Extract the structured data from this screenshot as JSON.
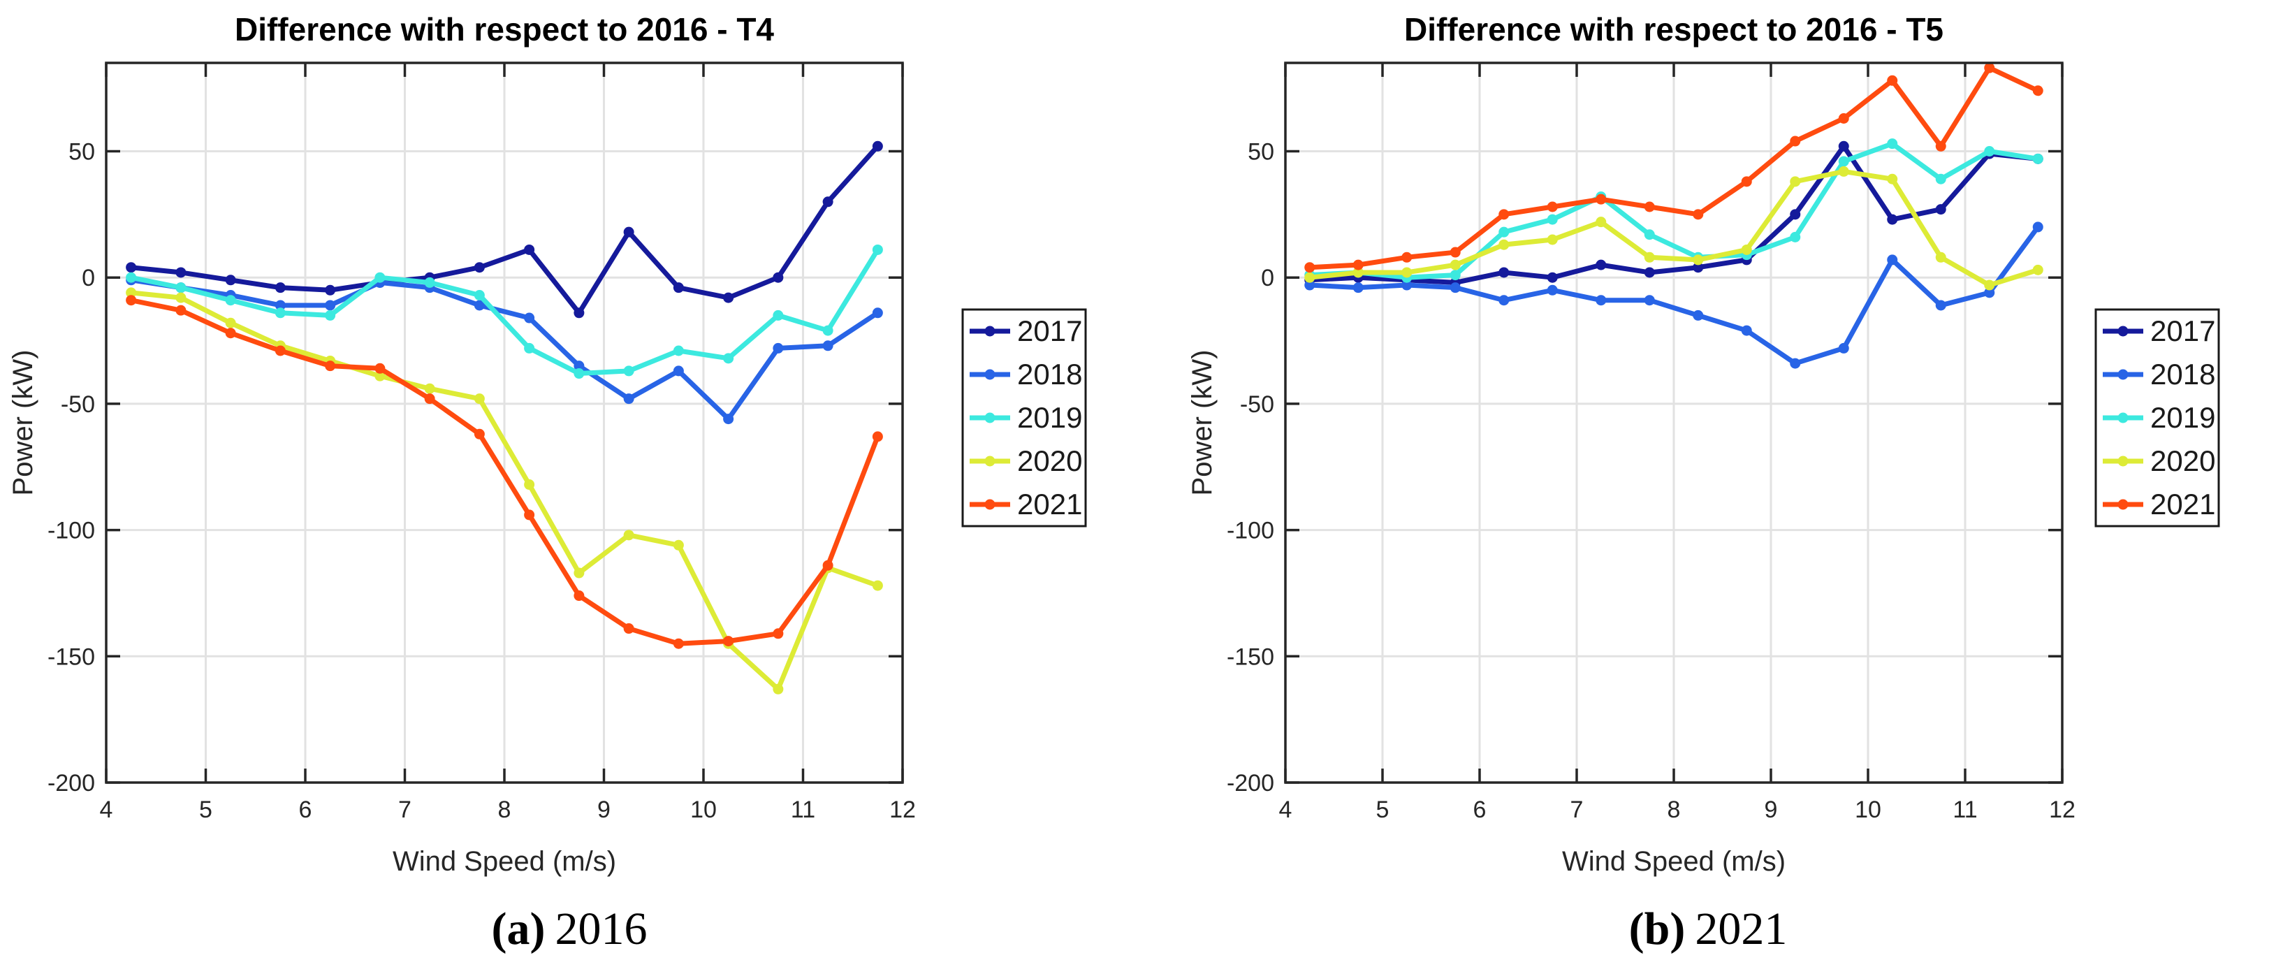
{
  "page": {
    "background": "#ffffff"
  },
  "colors": {
    "axis": "#262626",
    "grid": "#e2e2e2",
    "title": "#000000",
    "legend_border": "#1a1a1a"
  },
  "captions": [
    {
      "marker": "(a)",
      "year": "2016"
    },
    {
      "marker": "(b)",
      "year": "2021"
    }
  ],
  "chart_data": [
    {
      "type": "line",
      "title": "Difference with respect to 2016 - T4",
      "xlabel": "Wind Speed (m/s)",
      "ylabel": "Power (kW)",
      "xlim": [
        4,
        12
      ],
      "ylim": [
        -200,
        85
      ],
      "xticks": [
        4,
        5,
        6,
        7,
        8,
        9,
        10,
        11,
        12
      ],
      "yticks": [
        50,
        0,
        -50,
        -100,
        -150,
        -200
      ],
      "grid": true,
      "legend_position": "outside-right",
      "marker": "circle",
      "x": [
        4.25,
        4.75,
        5.25,
        5.75,
        6.25,
        6.75,
        7.25,
        7.75,
        8.25,
        8.75,
        9.25,
        9.75,
        10.25,
        10.75,
        11.25,
        11.75
      ],
      "series": [
        {
          "name": "2017",
          "color": "#151a9b",
          "values": [
            4,
            2,
            -1,
            -4,
            -5,
            -2,
            0,
            4,
            11,
            -14,
            18,
            -4,
            -8,
            0,
            30,
            52
          ]
        },
        {
          "name": "2018",
          "color": "#2864e6",
          "values": [
            -1,
            -4,
            -7,
            -11,
            -11,
            -2,
            -4,
            -11,
            -16,
            -35,
            -48,
            -37,
            -56,
            -28,
            -27,
            -14
          ]
        },
        {
          "name": "2019",
          "color": "#3ce9df",
          "values": [
            0,
            -4,
            -9,
            -14,
            -15,
            0,
            -2,
            -7,
            -28,
            -38,
            -37,
            -29,
            -32,
            -15,
            -21,
            11
          ]
        },
        {
          "name": "2020",
          "color": "#ddeb36",
          "values": [
            -6,
            -8,
            -18,
            -27,
            -33,
            -39,
            -44,
            -48,
            -82,
            -117,
            -102,
            -106,
            -145,
            -163,
            -115,
            -122
          ]
        },
        {
          "name": "2021",
          "color": "#ff4b0f",
          "values": [
            -9,
            -13,
            -22,
            -29,
            -35,
            -36,
            -48,
            -62,
            -94,
            -126,
            -139,
            -145,
            -144,
            -141,
            -114,
            -63
          ]
        }
      ]
    },
    {
      "type": "line",
      "title": "Difference with respect to 2016 - T5",
      "xlabel": "Wind Speed (m/s)",
      "ylabel": "Power (kW)",
      "xlim": [
        4,
        12
      ],
      "ylim": [
        -200,
        85
      ],
      "xticks": [
        4,
        5,
        6,
        7,
        8,
        9,
        10,
        11,
        12
      ],
      "yticks": [
        50,
        0,
        -50,
        -100,
        -150,
        -200
      ],
      "grid": true,
      "legend_position": "outside-right",
      "marker": "circle",
      "x": [
        4.25,
        4.75,
        5.25,
        5.75,
        6.25,
        6.75,
        7.25,
        7.75,
        8.25,
        8.75,
        9.25,
        9.75,
        10.25,
        10.75,
        11.25,
        11.75
      ],
      "series": [
        {
          "name": "2017",
          "color": "#151a9b",
          "values": [
            -1,
            0,
            -1,
            -2,
            2,
            0,
            5,
            2,
            4,
            7,
            25,
            52,
            23,
            27,
            49,
            47
          ]
        },
        {
          "name": "2018",
          "color": "#2864e6",
          "values": [
            -3,
            -4,
            -3,
            -4,
            -9,
            -5,
            -9,
            -9,
            -15,
            -21,
            -34,
            -28,
            7,
            -11,
            -6,
            20
          ]
        },
        {
          "name": "2019",
          "color": "#3ce9df",
          "values": [
            1,
            2,
            0,
            1,
            18,
            23,
            32,
            17,
            8,
            9,
            16,
            46,
            53,
            39,
            50,
            47
          ]
        },
        {
          "name": "2020",
          "color": "#ddeb36",
          "values": [
            0,
            2,
            2,
            5,
            13,
            15,
            22,
            8,
            7,
            11,
            38,
            42,
            39,
            8,
            -3,
            3
          ]
        },
        {
          "name": "2021",
          "color": "#ff4b0f",
          "values": [
            4,
            5,
            8,
            10,
            25,
            28,
            31,
            28,
            25,
            38,
            54,
            63,
            78,
            52,
            83,
            74
          ]
        }
      ]
    }
  ]
}
